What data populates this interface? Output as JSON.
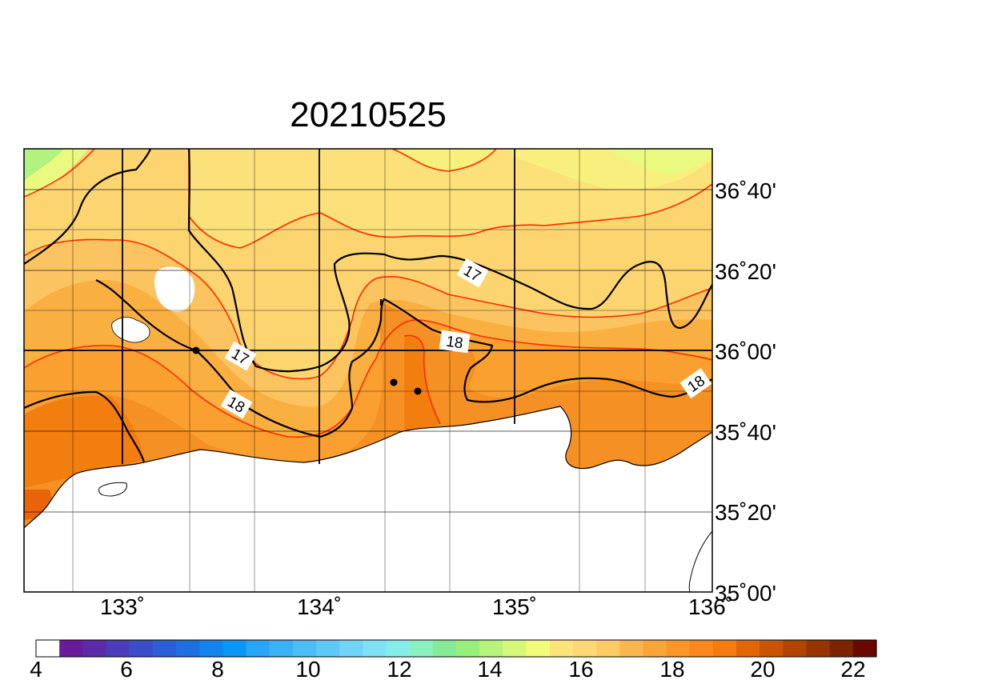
{
  "title": "20210525",
  "map": {
    "lon_ticks": [
      {
        "value": 133,
        "label": "133˚"
      },
      {
        "value": 134,
        "label": "134˚"
      },
      {
        "value": 135,
        "label": "135˚"
      },
      {
        "value": 136,
        "label": "136˚"
      }
    ],
    "lat_ticks": [
      {
        "value": 36.6667,
        "label": "36˚40'"
      },
      {
        "value": 36.3333,
        "label": "36˚20'"
      },
      {
        "value": 36.0,
        "label": "36˚00'"
      },
      {
        "value": 35.6667,
        "label": "35˚40'"
      },
      {
        "value": 35.3333,
        "label": "35˚20'"
      },
      {
        "value": 35.0,
        "label": "35˚00'"
      }
    ],
    "contour_labels": [
      "17",
      "17",
      "18",
      "18",
      "18"
    ],
    "land_color": "#ffffff",
    "coastline_color": "#000000",
    "contour_color": "#000000",
    "minor_contour_color": "#ff2a00"
  },
  "colorbar": {
    "min": 4,
    "max": 22,
    "tick_labels": [
      "4",
      "6",
      "8",
      "10",
      "12",
      "14",
      "16",
      "18",
      "20",
      "22"
    ],
    "colors": [
      "#ffffff",
      "#6a1a9a",
      "#5b2aa8",
      "#4b3cb8",
      "#3b4ec8",
      "#2c5fd4",
      "#1f6fde",
      "#1483ea",
      "#0a96f2",
      "#2aa4f4",
      "#3bb0f6",
      "#4cbcf6",
      "#5fc8f6",
      "#72d4f6",
      "#7ee2f4",
      "#86eeea",
      "#8af0c0",
      "#84ec98",
      "#98f07c",
      "#b8f47c",
      "#d8f87c",
      "#f4fa7c",
      "#fce47a",
      "#fcd876",
      "#fdca6a",
      "#fbb652",
      "#f9a53a",
      "#f9962a",
      "#f98820",
      "#f27c10",
      "#e06608",
      "#c95404",
      "#b04402",
      "#963402",
      "#7c2402",
      "#6a0800"
    ]
  },
  "field_colors": {
    "c15": "#eafa80",
    "c155": "#f8f07c",
    "c16": "#fce07a",
    "c165": "#fcd470",
    "c17": "#fcc460",
    "c175": "#f9b040",
    "c18": "#f9a030",
    "c185": "#f59024",
    "c19": "#f37e10",
    "c195": "#e96408",
    "c15green": "#b2f27e"
  }
}
